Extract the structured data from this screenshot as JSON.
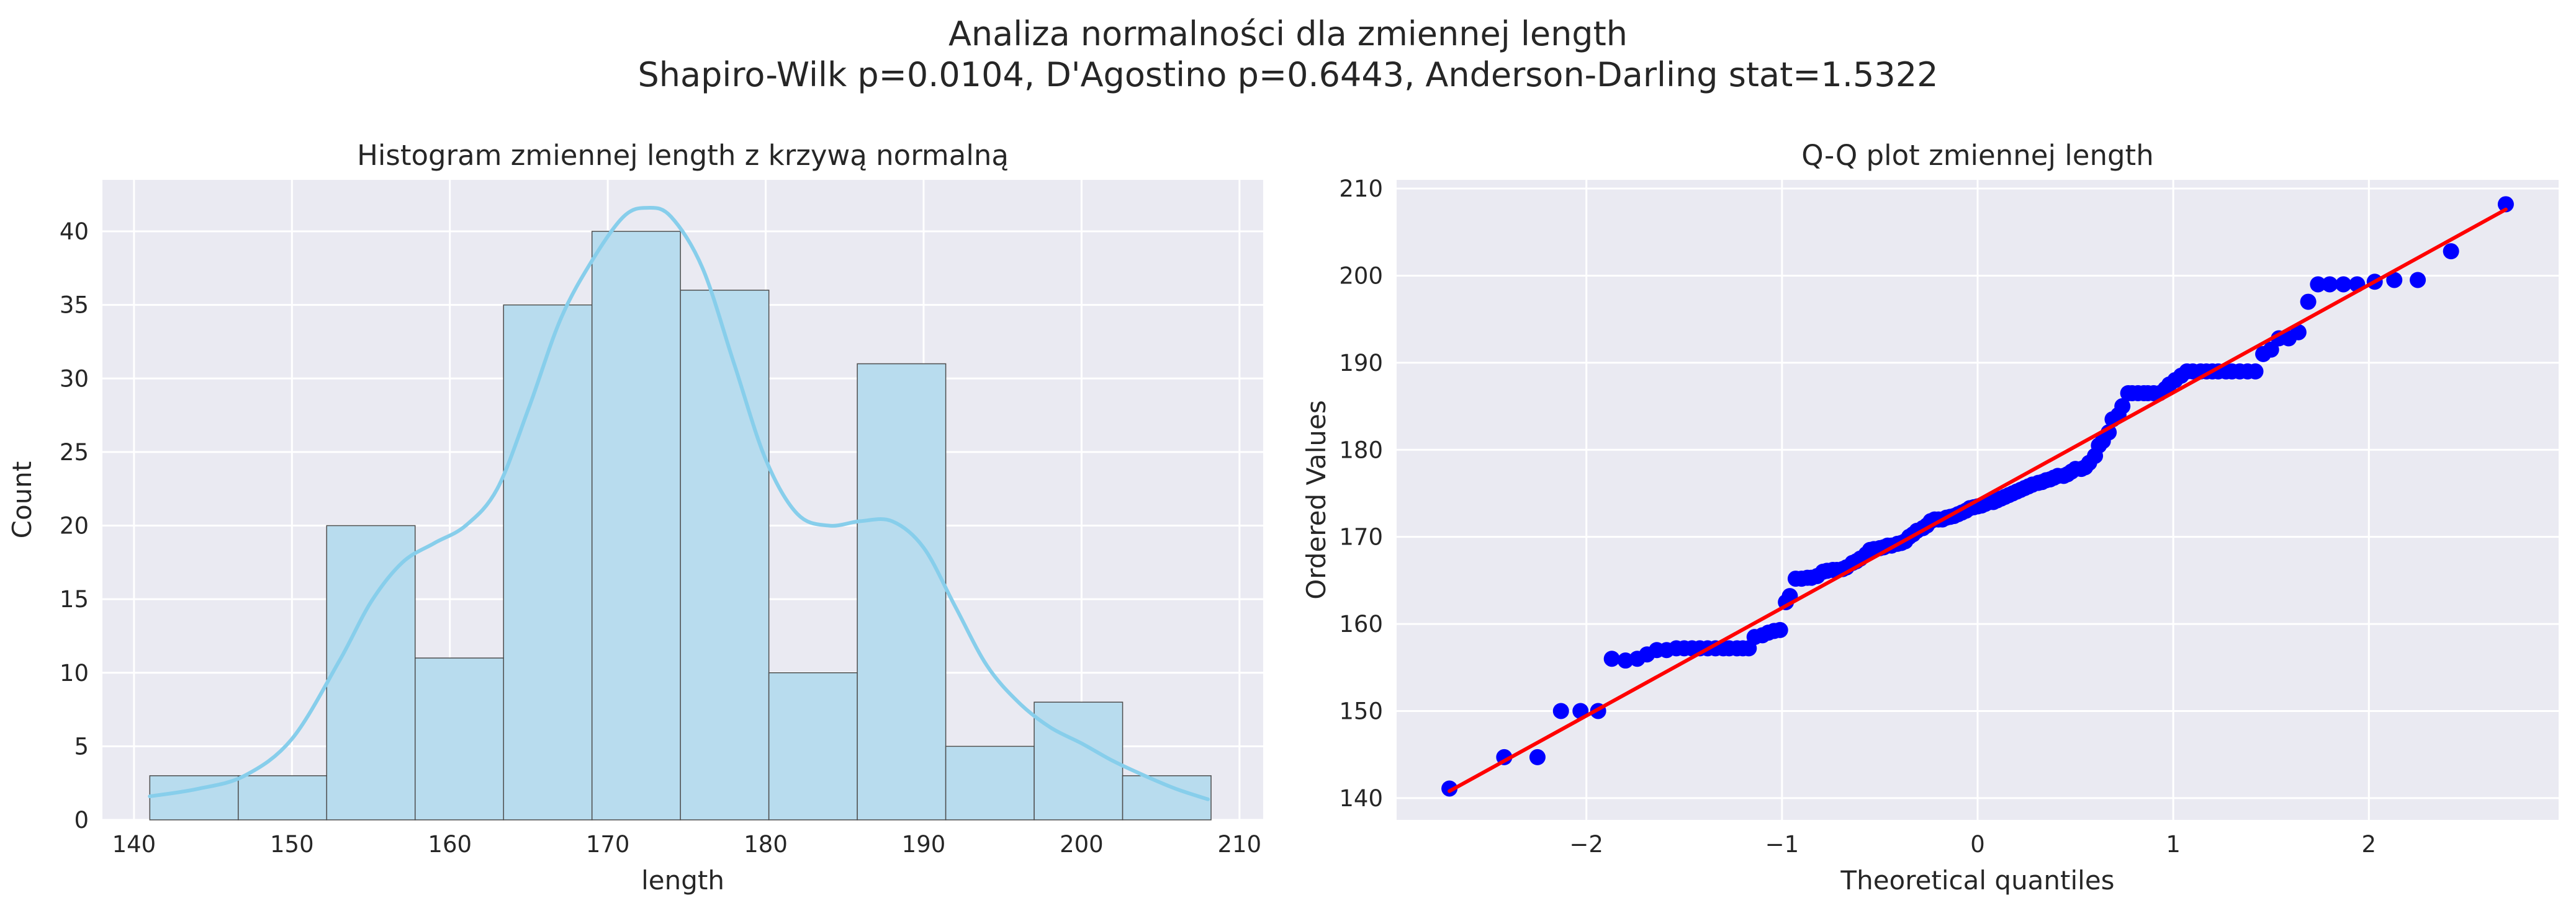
{
  "figure": {
    "title": "Analiza normalności dla zmiennej length",
    "subtitle": "Shapiro-Wilk p=0.0104, D'Agostino p=0.6443, Anderson-Darling stat=1.5322"
  },
  "colors": {
    "panel_bg": "#eaeaf2",
    "grid": "#ffffff",
    "hist_fill": "#b8dcee",
    "hist_edge": "#4d4d4d",
    "kde": "#87ceeb",
    "qq_points": "#0000ff",
    "qq_line": "#ff0000"
  },
  "chart_data": [
    {
      "type": "bar",
      "subtype": "histogram-with-kde",
      "title": "Histogram zmiennej length z krzywą normalną",
      "xlabel": "length",
      "ylabel": "Count",
      "xlim": [
        138,
        211.5
      ],
      "ylim": [
        0,
        43.5
      ],
      "xticks": [
        140,
        150,
        160,
        170,
        180,
        190,
        200,
        210
      ],
      "yticks": [
        0,
        5,
        10,
        15,
        20,
        25,
        30,
        35,
        40
      ],
      "bin_edges": [
        141.0,
        146.6,
        152.2,
        157.8,
        163.4,
        169.0,
        174.6,
        180.2,
        185.8,
        191.4,
        197.0,
        202.6,
        208.2
      ],
      "values": [
        3,
        3,
        20,
        11,
        35,
        40,
        36,
        10,
        31,
        5,
        8,
        3
      ],
      "kde": {
        "x": [
          141,
          144,
          147,
          150,
          153,
          155,
          157,
          159,
          161,
          163,
          165,
          167,
          169,
          171,
          172.5,
          174,
          176,
          178,
          180,
          182,
          184,
          186,
          188,
          190,
          192,
          194,
          196,
          198,
          200,
          202,
          204,
          206,
          208
        ],
        "y": [
          1.6,
          2.1,
          3.0,
          5.5,
          10.8,
          14.8,
          17.5,
          18.8,
          20.0,
          22.5,
          28.0,
          34.0,
          38.0,
          41.0,
          41.6,
          41.0,
          37.5,
          31.0,
          24.5,
          20.8,
          20.0,
          20.3,
          20.3,
          18.5,
          14.5,
          10.5,
          8.0,
          6.3,
          5.2,
          4.0,
          3.0,
          2.1,
          1.4
        ]
      },
      "grid": true
    },
    {
      "type": "scatter",
      "subtype": "qq-plot",
      "title": "Q-Q plot zmiennej length",
      "xlabel": "Theoretical quantiles",
      "ylabel": "Ordered Values",
      "xlim": [
        -2.97,
        2.97
      ],
      "ylim": [
        137.5,
        211
      ],
      "xticks": [
        -2,
        -1,
        0,
        1,
        2
      ],
      "xtick_labels": [
        "−2",
        "−1",
        "0",
        "1",
        "2"
      ],
      "yticks": [
        140,
        150,
        160,
        170,
        180,
        190,
        200,
        210
      ],
      "fit_line": {
        "x": [
          -2.7,
          2.7
        ],
        "y": [
          140.8,
          207.6
        ]
      },
      "points": [
        [
          -2.7,
          141.1
        ],
        [
          -2.42,
          144.7
        ],
        [
          -2.25,
          144.7
        ],
        [
          -2.13,
          150.0
        ],
        [
          -2.03,
          150.0
        ],
        [
          -1.94,
          150.0
        ],
        [
          -1.87,
          156.0
        ],
        [
          -1.8,
          155.8
        ],
        [
          -1.74,
          156.0
        ],
        [
          -1.69,
          156.5
        ],
        [
          -1.64,
          157.0
        ],
        [
          -1.59,
          157.0
        ],
        [
          -1.54,
          157.2
        ],
        [
          -1.5,
          157.2
        ],
        [
          -1.46,
          157.2
        ],
        [
          -1.42,
          157.2
        ],
        [
          -1.38,
          157.2
        ],
        [
          -1.34,
          157.2
        ],
        [
          -1.3,
          157.2
        ],
        [
          -1.27,
          157.2
        ],
        [
          -1.23,
          157.2
        ],
        [
          -1.2,
          157.2
        ],
        [
          -1.17,
          157.2
        ],
        [
          -1.14,
          158.5
        ],
        [
          -1.1,
          158.7
        ],
        [
          -1.07,
          159.0
        ],
        [
          -1.04,
          159.2
        ],
        [
          -1.01,
          159.3
        ],
        [
          -0.98,
          162.5
        ],
        [
          -0.96,
          163.2
        ],
        [
          -0.93,
          165.2
        ],
        [
          -0.9,
          165.2
        ],
        [
          -0.87,
          165.3
        ],
        [
          -0.85,
          165.3
        ],
        [
          -0.82,
          165.5
        ],
        [
          -0.79,
          166.0
        ],
        [
          -0.77,
          166.1
        ],
        [
          -0.74,
          166.2
        ],
        [
          -0.72,
          166.2
        ],
        [
          -0.69,
          166.3
        ],
        [
          -0.67,
          166.5
        ],
        [
          -0.64,
          167.0
        ],
        [
          -0.62,
          167.2
        ],
        [
          -0.6,
          167.5
        ],
        [
          -0.57,
          168.0
        ],
        [
          -0.55,
          168.5
        ],
        [
          -0.53,
          168.6
        ],
        [
          -0.5,
          168.7
        ],
        [
          -0.48,
          168.8
        ],
        [
          -0.46,
          169.0
        ],
        [
          -0.44,
          169.0
        ],
        [
          -0.41,
          169.2
        ],
        [
          -0.39,
          169.3
        ],
        [
          -0.37,
          169.5
        ],
        [
          -0.35,
          170.0
        ],
        [
          -0.33,
          170.3
        ],
        [
          -0.31,
          170.7
        ],
        [
          -0.28,
          171.0
        ],
        [
          -0.26,
          171.3
        ],
        [
          -0.24,
          171.8
        ],
        [
          -0.22,
          172.0
        ],
        [
          -0.2,
          172.0
        ],
        [
          -0.18,
          172.0
        ],
        [
          -0.16,
          172.2
        ],
        [
          -0.14,
          172.3
        ],
        [
          -0.12,
          172.4
        ],
        [
          -0.1,
          172.6
        ],
        [
          -0.08,
          172.8
        ],
        [
          -0.06,
          173.0
        ],
        [
          -0.04,
          173.3
        ],
        [
          -0.02,
          173.4
        ],
        [
          0.0,
          173.5
        ],
        [
          0.02,
          173.6
        ],
        [
          0.04,
          173.8
        ],
        [
          0.06,
          174.0
        ],
        [
          0.08,
          174.0
        ],
        [
          0.1,
          174.2
        ],
        [
          0.12,
          174.4
        ],
        [
          0.14,
          174.6
        ],
        [
          0.16,
          174.8
        ],
        [
          0.18,
          175.0
        ],
        [
          0.2,
          175.2
        ],
        [
          0.22,
          175.4
        ],
        [
          0.24,
          175.6
        ],
        [
          0.26,
          175.8
        ],
        [
          0.28,
          176.0
        ],
        [
          0.31,
          176.2
        ],
        [
          0.33,
          176.3
        ],
        [
          0.35,
          176.5
        ],
        [
          0.37,
          176.6
        ],
        [
          0.39,
          176.8
        ],
        [
          0.41,
          177.0
        ],
        [
          0.44,
          177.0
        ],
        [
          0.46,
          177.2
        ],
        [
          0.48,
          177.5
        ],
        [
          0.5,
          177.8
        ],
        [
          0.53,
          177.8
        ],
        [
          0.55,
          178.0
        ],
        [
          0.57,
          178.5
        ],
        [
          0.6,
          179.3
        ],
        [
          0.62,
          180.5
        ],
        [
          0.64,
          181.0
        ],
        [
          0.67,
          182.0
        ],
        [
          0.69,
          183.5
        ],
        [
          0.72,
          184.0
        ],
        [
          0.74,
          185.0
        ],
        [
          0.77,
          186.5
        ],
        [
          0.79,
          186.5
        ],
        [
          0.82,
          186.5
        ],
        [
          0.85,
          186.5
        ],
        [
          0.87,
          186.5
        ],
        [
          0.9,
          186.5
        ],
        [
          0.93,
          186.5
        ],
        [
          0.96,
          187.0
        ],
        [
          0.98,
          187.5
        ],
        [
          1.01,
          188.0
        ],
        [
          1.04,
          188.5
        ],
        [
          1.07,
          189.0
        ],
        [
          1.1,
          189.0
        ],
        [
          1.14,
          189.0
        ],
        [
          1.17,
          189.0
        ],
        [
          1.2,
          189.0
        ],
        [
          1.23,
          189.0
        ],
        [
          1.27,
          189.0
        ],
        [
          1.3,
          189.0
        ],
        [
          1.34,
          189.0
        ],
        [
          1.38,
          189.0
        ],
        [
          1.42,
          189.0
        ],
        [
          1.46,
          191.0
        ],
        [
          1.5,
          191.5
        ],
        [
          1.54,
          192.8
        ],
        [
          1.59,
          192.8
        ],
        [
          1.64,
          193.5
        ],
        [
          1.69,
          197.0
        ],
        [
          1.74,
          199.0
        ],
        [
          1.8,
          199.0
        ],
        [
          1.87,
          199.0
        ],
        [
          1.94,
          199.0
        ],
        [
          2.03,
          199.3
        ],
        [
          2.13,
          199.5
        ],
        [
          2.25,
          199.5
        ],
        [
          2.42,
          202.8
        ],
        [
          2.7,
          208.2
        ]
      ],
      "grid": true
    }
  ]
}
